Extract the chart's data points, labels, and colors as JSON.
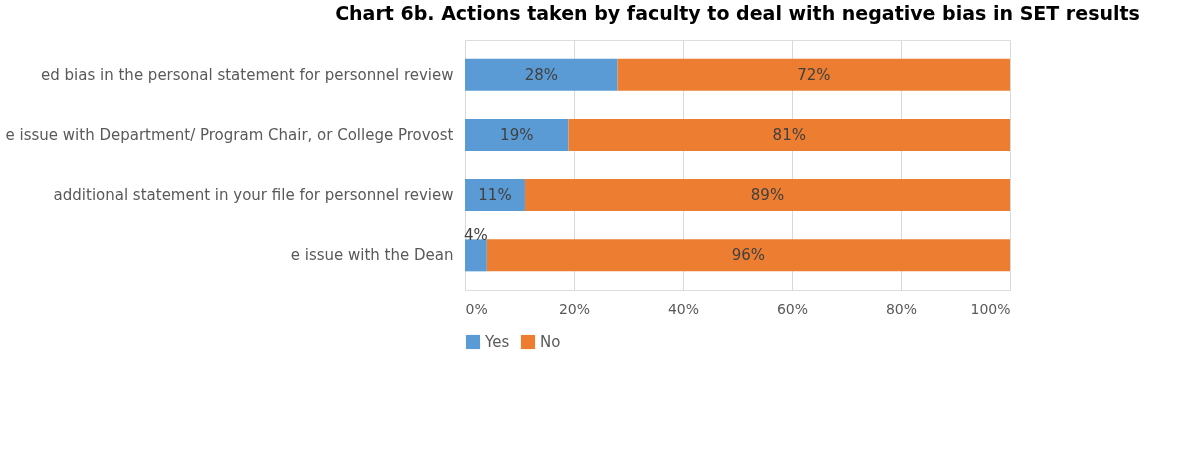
{
  "chart_data": {
    "type": "bar",
    "orientation": "horizontal",
    "stacked": true,
    "title": "Chart 6b. Actions taken by faculty to deal with negative bias in SET results",
    "categories": [
      "ed bias in the personal statement for personnel review",
      "e issue with Department/ Program Chair, or College Provost",
      " additional statement in your file for personnel review",
      "e issue with the Dean"
    ],
    "series": [
      {
        "name": "Yes",
        "color": "#5b9bd5",
        "values": [
          28,
          19,
          11,
          4
        ],
        "value_labels": [
          "28%",
          "19%",
          "11%",
          "4%"
        ]
      },
      {
        "name": "No",
        "color": "#ed7d31",
        "values": [
          72,
          81,
          89,
          96
        ],
        "value_labels": [
          "72%",
          "81%",
          "89%",
          "96%"
        ]
      }
    ],
    "xlim": [
      0,
      100
    ],
    "xticks": [
      {
        "value": 0,
        "label": "0%"
      },
      {
        "value": 20,
        "label": "20%"
      },
      {
        "value": 40,
        "label": "40%"
      },
      {
        "value": 60,
        "label": "60%"
      },
      {
        "value": 80,
        "label": "80%"
      },
      {
        "value": 100,
        "label": "100%"
      }
    ],
    "grid": "x",
    "legend": "bottom"
  }
}
